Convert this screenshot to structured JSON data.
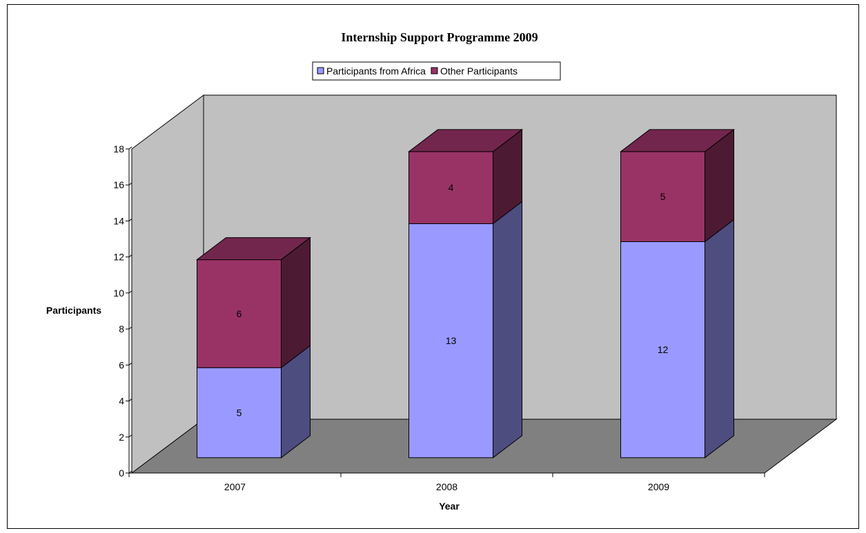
{
  "chart_data": {
    "type": "bar",
    "stacked": true,
    "three_d": true,
    "title": "Internship Support Programme 2009",
    "xlabel": "Year",
    "ylabel": "Participants",
    "categories": [
      "2007",
      "2008",
      "2009"
    ],
    "series": [
      {
        "name": "Participants from Africa",
        "values": [
          5,
          13,
          12
        ],
        "color": "#9999ff"
      },
      {
        "name": "Other Participants",
        "values": [
          6,
          4,
          5
        ],
        "color": "#993366"
      }
    ],
    "ylim": [
      0,
      18
    ],
    "yticks": [
      0,
      2,
      4,
      6,
      8,
      10,
      12,
      14,
      16,
      18
    ],
    "legend_position": "top",
    "colors": {
      "back_wall": "#c0c0c0",
      "floor": "#808080"
    }
  }
}
